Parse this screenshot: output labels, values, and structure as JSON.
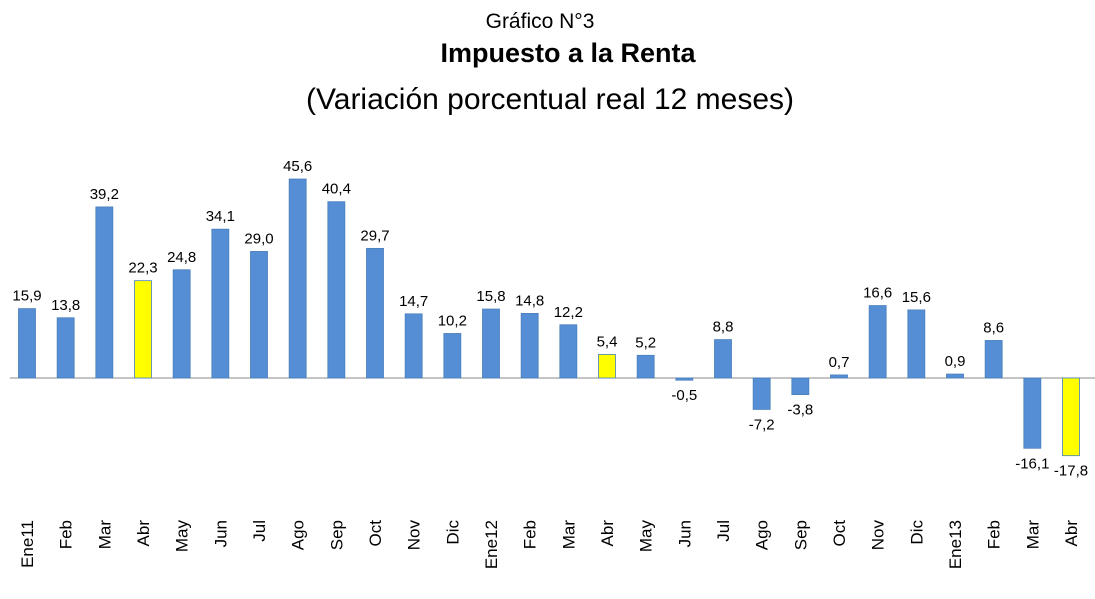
{
  "chart_data": {
    "type": "bar",
    "title": "Gráfico N°3",
    "subtitle": "Impuesto a la Renta",
    "caption": "(Variación porcentual real 12 meses)",
    "categories": [
      "Ene11",
      "Feb",
      "Mar",
      "Abr",
      "May",
      "Jun",
      "Jul",
      "Ago",
      "Sep",
      "Oct",
      "Nov",
      "Dic",
      "Ene12",
      "Feb",
      "Mar",
      "Abr",
      "May",
      "Jun",
      "Jul",
      "Ago",
      "Sep",
      "Oct",
      "Nov",
      "Dic",
      "Ene13",
      "Feb",
      "Mar",
      "Abr"
    ],
    "values": [
      15.9,
      13.8,
      39.2,
      22.3,
      24.8,
      34.1,
      29.0,
      45.6,
      40.4,
      29.7,
      14.7,
      10.2,
      15.8,
      14.8,
      12.2,
      5.4,
      5.2,
      -0.5,
      8.8,
      -7.2,
      -3.8,
      0.7,
      16.6,
      15.6,
      0.9,
      8.6,
      -16.1,
      -17.8
    ],
    "value_labels": [
      "15,9",
      "13,8",
      "39,2",
      "22,3",
      "24,8",
      "34,1",
      "29,0",
      "45,6",
      "40,4",
      "29,7",
      "14,7",
      "10,2",
      "15,8",
      "14,8",
      "12,2",
      "5,4",
      "5,2",
      "-0,5",
      "8,8",
      "-7,2",
      "-3,8",
      "0,7",
      "16,6",
      "15,6",
      "0,9",
      "8,6",
      "-16,1",
      "-17,8"
    ],
    "colors": [
      "#558ed5",
      "#558ed5",
      "#558ed5",
      "#ffff00",
      "#558ed5",
      "#558ed5",
      "#558ed5",
      "#558ed5",
      "#558ed5",
      "#558ed5",
      "#558ed5",
      "#558ed5",
      "#558ed5",
      "#558ed5",
      "#558ed5",
      "#ffff00",
      "#558ed5",
      "#558ed5",
      "#558ed5",
      "#558ed5",
      "#558ed5",
      "#558ed5",
      "#558ed5",
      "#558ed5",
      "#558ed5",
      "#558ed5",
      "#558ed5",
      "#ffff00"
    ]
  }
}
